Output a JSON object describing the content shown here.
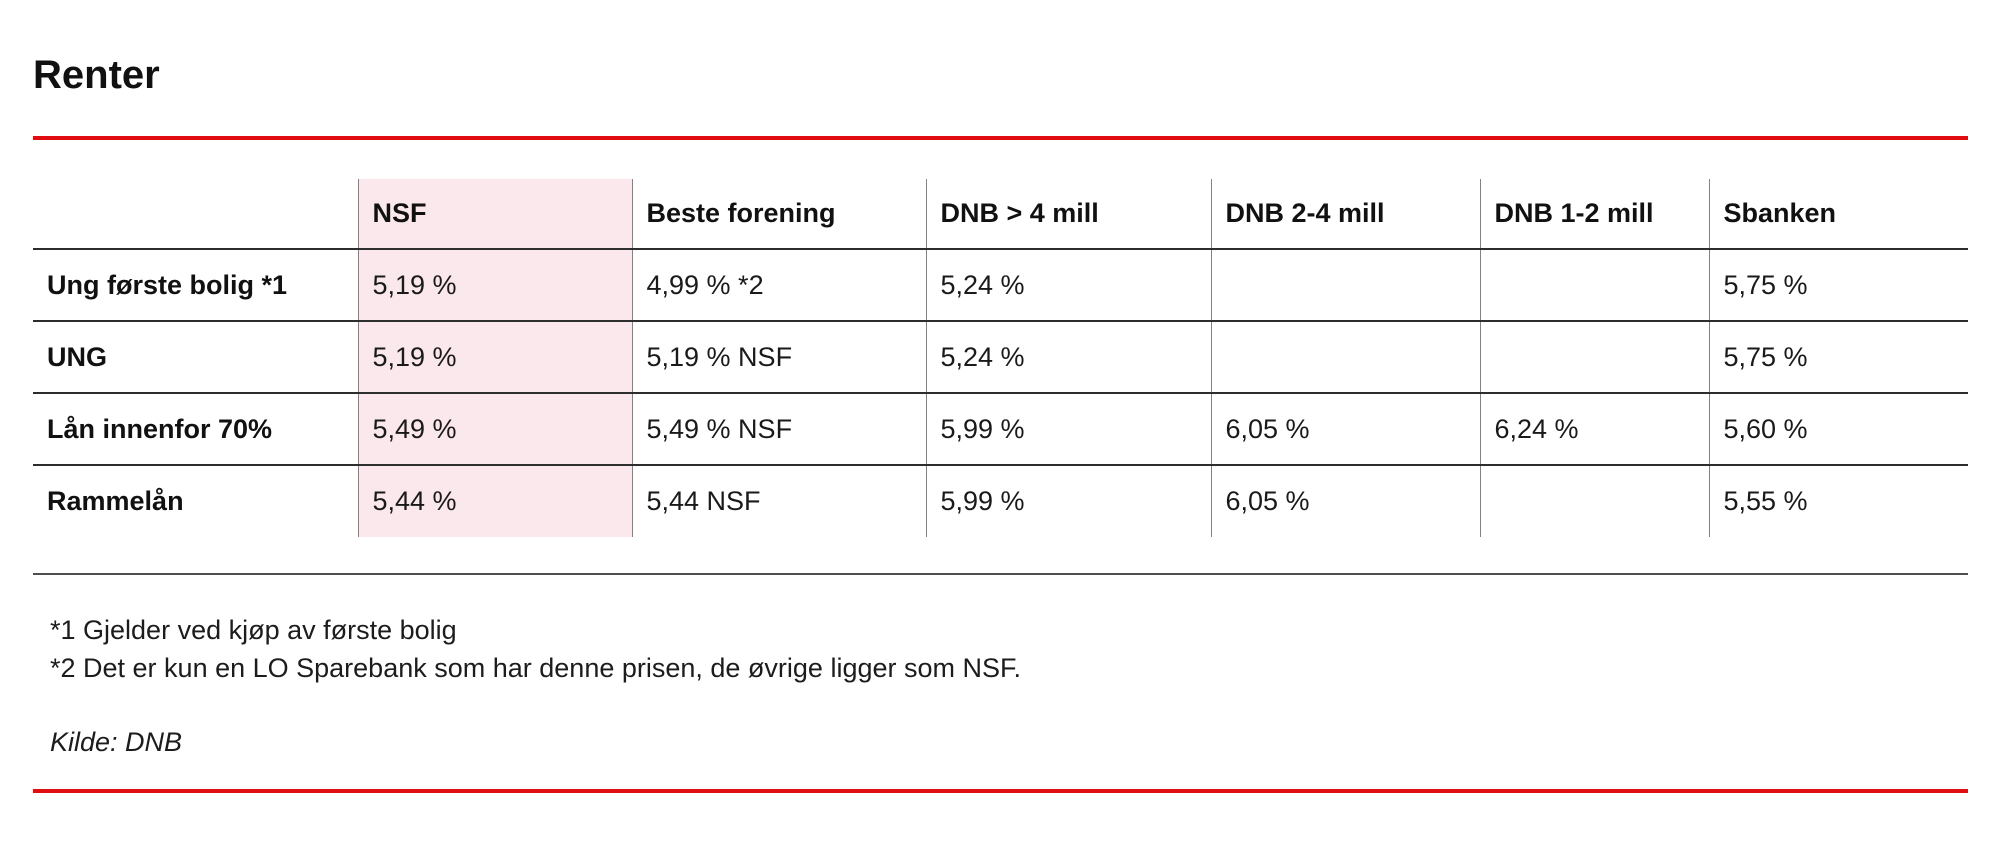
{
  "title": "Renter",
  "chart_data": {
    "type": "table",
    "title": "Renter",
    "columns": [
      "",
      "NSF",
      "Beste forening",
      "DNB > 4 mill",
      "DNB 2-4 mill",
      "DNB 1-2 mill",
      "Sbanken"
    ],
    "highlight_column": "NSF",
    "rows": [
      {
        "label": "Ung første bolig *1",
        "values": [
          "5,19 %",
          "4,99 % *2",
          "5,24 %",
          "",
          "",
          "5,75 %"
        ]
      },
      {
        "label": "UNG",
        "values": [
          "5,19 %",
          "5,19 % NSF",
          "5,24 %",
          "",
          "",
          "5,75 %"
        ]
      },
      {
        "label": "Lån innenfor 70%",
        "values": [
          "5,49 %",
          "5,49 % NSF",
          "5,99 %",
          "6,05 %",
          "6,24 %",
          "5,60 %"
        ]
      },
      {
        "label": "Rammelån",
        "values": [
          "5,44 %",
          "5,44 NSF",
          "5,99 %",
          "6,05 %",
          "",
          "5,55 %"
        ]
      }
    ],
    "colors": {
      "accent_red": "#e00d12",
      "highlight_pink": "#fbe8ec",
      "grid_horizontal": "#2d2d2d",
      "grid_vertical": "#828282"
    }
  },
  "footnotes": [
    "*1 Gjelder ved kjøp av første bolig",
    "*2 Det er kun en LO Sparebank som har denne prisen, de øvrige ligger som NSF."
  ],
  "source": "Kilde: DNB"
}
